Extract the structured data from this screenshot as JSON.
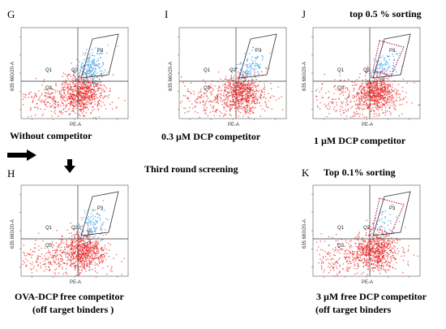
{
  "figure": {
    "panels": [
      {
        "id": "G",
        "caption": "Without competitor",
        "caption_line2": "",
        "gate_label": "P3",
        "gate_style": "solid",
        "quadrant_labels": [
          "Q1",
          "Q2",
          "Q3"
        ],
        "x_axis_label": "PE-A",
        "y_axis_label": "635 660/20-A",
        "note": "",
        "blue_cells": "high"
      },
      {
        "id": "I",
        "caption": "0.3 µM DCP competitor",
        "caption_line2": "",
        "gate_label": "P3",
        "gate_style": "solid",
        "quadrant_labels": [
          "Q1",
          "Q2",
          "Q3"
        ],
        "x_axis_label": "PE-A",
        "y_axis_label": "635 660/20-A",
        "note": "",
        "blue_cells": "medium"
      },
      {
        "id": "J",
        "caption": "1 µM DCP competitor",
        "caption_line2": "",
        "gate_label": "P3",
        "gate_style": "dotted",
        "quadrant_labels": [
          "Q1",
          "Q2",
          "Q3"
        ],
        "x_axis_label": "PE-A",
        "y_axis_label": "635 660/20-A",
        "note": "top 0.5 % sorting",
        "blue_cells": "medium"
      },
      {
        "id": "H",
        "caption": "OVA-DCP  free competitor",
        "caption_line2": "(off target binders )",
        "gate_label": "P3",
        "gate_style": "solid",
        "quadrant_labels": [
          "Q1",
          "Q2",
          "Q3"
        ],
        "x_axis_label": "PE-A",
        "y_axis_label": "635 660/20-A",
        "note": "",
        "blue_cells": "medium"
      },
      {
        "id": "K",
        "caption": "3 µM  free DCP competitor",
        "caption_line2": "(off target binders",
        "gate_label": "P3",
        "gate_style": "dotted",
        "quadrant_labels": [
          "Q1",
          "Q2",
          "Q3"
        ],
        "x_axis_label": "PE-A",
        "y_axis_label": "635 660/20-A",
        "note": "Top 0.1% sorting",
        "blue_cells": "low"
      }
    ],
    "middle_label": "Third round screening",
    "colors": {
      "cells_red": "#e8201f",
      "cells_blue": "#3fa3e8",
      "gate": "#333333",
      "sort_gate": "#b01050"
    }
  }
}
